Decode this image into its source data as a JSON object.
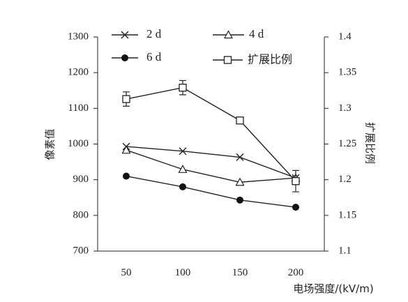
{
  "chart_data": {
    "type": "line",
    "x": [
      50,
      100,
      150,
      200
    ],
    "x_ticks": [
      "50",
      "100",
      "150",
      "200"
    ],
    "xlabel": "电场强度/(kV/m)",
    "ylabel_left": "像素值",
    "ylabel_right": "扩展比例",
    "ylim_left": [
      700,
      1300
    ],
    "yticks_left": [
      "700",
      "800",
      "900",
      "1000",
      "1100",
      "1200",
      "1300"
    ],
    "ylim_right": [
      1.1,
      1.4
    ],
    "yticks_right": [
      "1.1",
      "1.15",
      "1.2",
      "1.25",
      "1.3",
      "1.35",
      "1.4"
    ],
    "grid": false,
    "legend_position": "top",
    "series": [
      {
        "name": "2 d",
        "axis": "left",
        "marker": "x",
        "values": [
          993,
          980,
          963,
          905
        ]
      },
      {
        "name": "4 d",
        "axis": "left",
        "marker": "triangle",
        "values": [
          983,
          929,
          893,
          905
        ]
      },
      {
        "name": "6 d",
        "axis": "left",
        "marker": "circle",
        "values": [
          910,
          880,
          843,
          823
        ]
      },
      {
        "name": "扩展比例",
        "axis": "right",
        "marker": "square",
        "values": [
          1.313,
          1.329,
          1.283,
          1.198
        ],
        "error": [
          0.01,
          0.01,
          0.003,
          0.015
        ]
      }
    ]
  }
}
